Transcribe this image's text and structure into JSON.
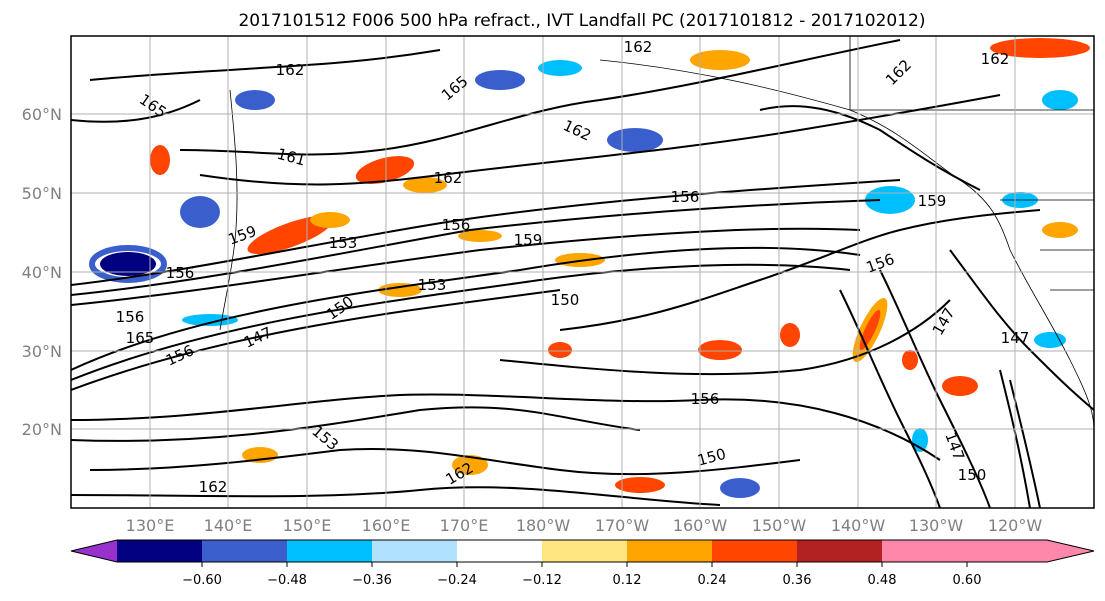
{
  "title": "2017101512 F006 500 hPa refract., IVT Landfall PC (2017101812 - 2017102012)",
  "lon_labels": [
    "130°E",
    "140°E",
    "150°E",
    "160°E",
    "170°E",
    "180°W",
    "170°W",
    "160°W",
    "150°W",
    "140°W",
    "130°W",
    "120°W"
  ],
  "lat_labels": [
    "60°N",
    "50°N",
    "40°N",
    "30°N",
    "20°N"
  ],
  "colorbar": {
    "tick_labels": [
      "−0.60",
      "−0.48",
      "−0.36",
      "−0.24",
      "−0.12",
      "0.12",
      "0.24",
      "0.36",
      "0.48",
      "0.60"
    ],
    "colors": [
      "#9932cc",
      "#000080",
      "#3a5fcd",
      "#00bfff",
      "#b0e2ff",
      "#ffffff",
      "#ffe680",
      "#ffa500",
      "#ff4500",
      "#b22222",
      "#ff88aa"
    ]
  },
  "contour_labels": [
    "162",
    "162",
    "165",
    "165",
    "162",
    "161",
    "162",
    "156",
    "159",
    "156",
    "153",
    "159",
    "159",
    "156",
    "153",
    "150",
    "156",
    "147",
    "156",
    "165",
    "150",
    "147",
    "156",
    "156",
    "150",
    "162",
    "162",
    "150",
    "147",
    "162",
    "162",
    "153",
    "147"
  ]
}
